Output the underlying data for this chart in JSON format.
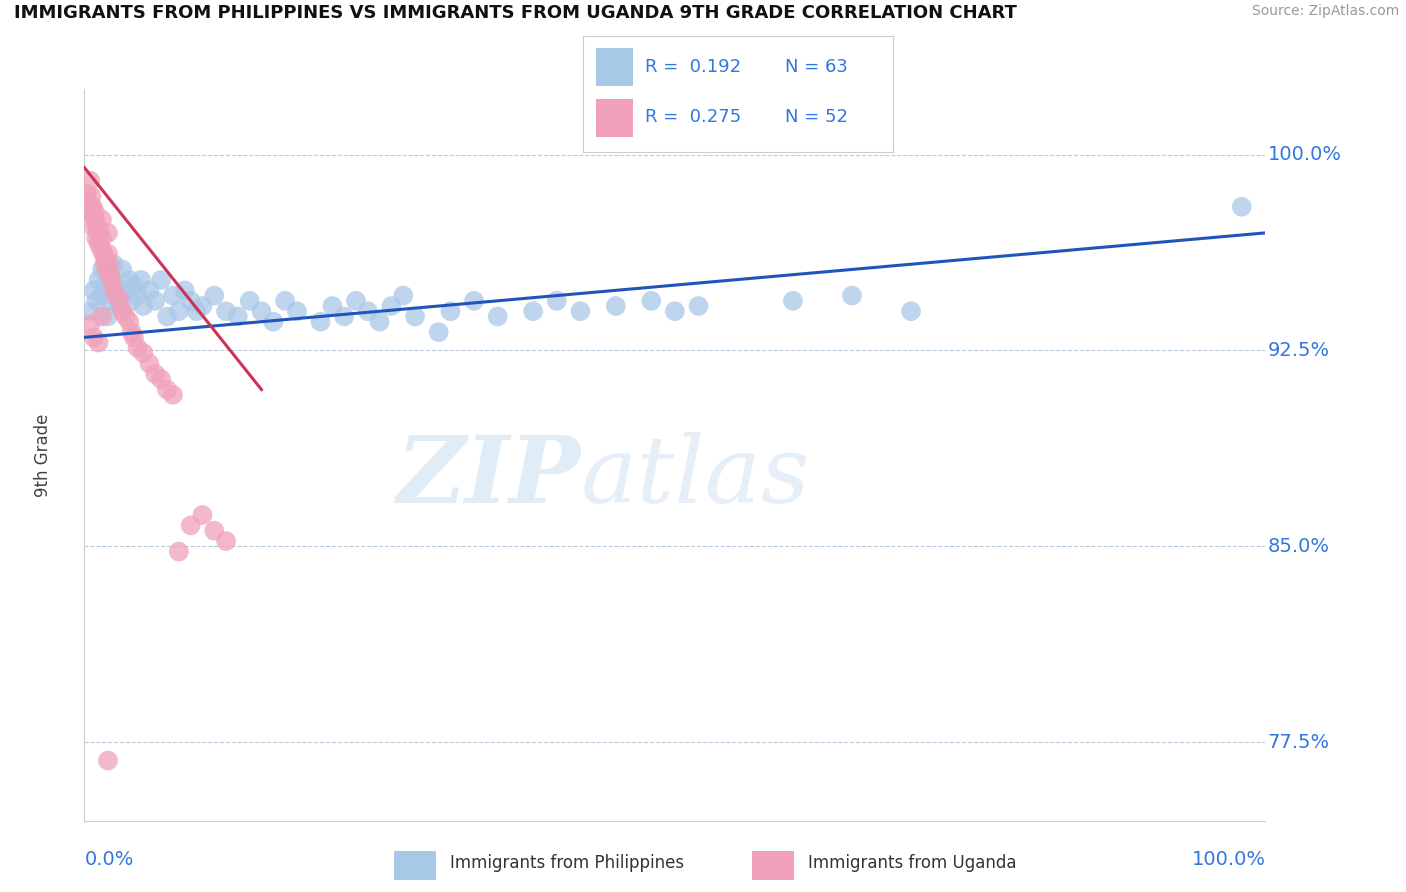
{
  "title": "IMMIGRANTS FROM PHILIPPINES VS IMMIGRANTS FROM UGANDA 9TH GRADE CORRELATION CHART",
  "source": "Source: ZipAtlas.com",
  "ylabel": "9th Grade",
  "y_tick_labels": [
    "77.5%",
    "85.0%",
    "92.5%",
    "100.0%"
  ],
  "y_tick_values": [
    0.775,
    0.85,
    0.925,
    1.0
  ],
  "x_range": [
    0.0,
    1.0
  ],
  "y_range": [
    0.745,
    1.025
  ],
  "blue_R": 0.192,
  "blue_N": 63,
  "pink_R": 0.275,
  "pink_N": 52,
  "blue_color": "#a8c8e8",
  "pink_color": "#f0a0b8",
  "trend_blue_color": "#2255bb",
  "trend_pink_color": "#cc3355",
  "legend_label_blue": "Immigrants from Philippines",
  "legend_label_pink": "Immigrants from Uganda",
  "watermark_zip": "ZIP",
  "watermark_atlas": "atlas",
  "title_color": "#111111",
  "axis_label_color": "#3377dd",
  "grid_color": "#b8cce0",
  "blue_scatter_x": [
    0.005,
    0.008,
    0.01,
    0.012,
    0.015,
    0.015,
    0.018,
    0.02,
    0.022,
    0.025,
    0.025,
    0.028,
    0.03,
    0.032,
    0.035,
    0.038,
    0.04,
    0.042,
    0.045,
    0.048,
    0.05,
    0.055,
    0.06,
    0.065,
    0.07,
    0.075,
    0.08,
    0.085,
    0.09,
    0.095,
    0.1,
    0.11,
    0.12,
    0.13,
    0.14,
    0.15,
    0.16,
    0.17,
    0.18,
    0.2,
    0.21,
    0.22,
    0.23,
    0.24,
    0.25,
    0.26,
    0.27,
    0.28,
    0.3,
    0.31,
    0.33,
    0.35,
    0.38,
    0.4,
    0.42,
    0.45,
    0.48,
    0.5,
    0.52,
    0.6,
    0.65,
    0.7,
    0.98
  ],
  "blue_scatter_y": [
    0.94,
    0.948,
    0.944,
    0.952,
    0.946,
    0.956,
    0.95,
    0.938,
    0.944,
    0.95,
    0.958,
    0.946,
    0.942,
    0.956,
    0.948,
    0.952,
    0.944,
    0.95,
    0.946,
    0.952,
    0.942,
    0.948,
    0.944,
    0.952,
    0.938,
    0.946,
    0.94,
    0.948,
    0.944,
    0.94,
    0.942,
    0.946,
    0.94,
    0.938,
    0.944,
    0.94,
    0.936,
    0.944,
    0.94,
    0.936,
    0.942,
    0.938,
    0.944,
    0.94,
    0.936,
    0.942,
    0.946,
    0.938,
    0.932,
    0.94,
    0.944,
    0.938,
    0.94,
    0.944,
    0.94,
    0.942,
    0.944,
    0.94,
    0.942,
    0.944,
    0.946,
    0.94,
    0.98
  ],
  "pink_scatter_x": [
    0.002,
    0.003,
    0.004,
    0.005,
    0.006,
    0.006,
    0.007,
    0.008,
    0.008,
    0.009,
    0.01,
    0.01,
    0.011,
    0.012,
    0.013,
    0.014,
    0.015,
    0.015,
    0.016,
    0.017,
    0.018,
    0.019,
    0.02,
    0.02,
    0.021,
    0.022,
    0.023,
    0.025,
    0.027,
    0.03,
    0.032,
    0.035,
    0.038,
    0.04,
    0.042,
    0.045,
    0.05,
    0.055,
    0.06,
    0.065,
    0.07,
    0.075,
    0.08,
    0.09,
    0.1,
    0.11,
    0.12,
    0.005,
    0.008,
    0.012,
    0.015,
    0.02
  ],
  "pink_scatter_y": [
    0.985,
    0.982,
    0.978,
    0.99,
    0.984,
    0.978,
    0.98,
    0.976,
    0.972,
    0.978,
    0.974,
    0.968,
    0.972,
    0.966,
    0.97,
    0.964,
    0.968,
    0.975,
    0.962,
    0.958,
    0.96,
    0.956,
    0.962,
    0.97,
    0.958,
    0.954,
    0.952,
    0.948,
    0.946,
    0.944,
    0.94,
    0.938,
    0.936,
    0.932,
    0.93,
    0.926,
    0.924,
    0.92,
    0.916,
    0.914,
    0.91,
    0.908,
    0.848,
    0.858,
    0.862,
    0.856,
    0.852,
    0.935,
    0.93,
    0.928,
    0.938,
    0.768
  ],
  "blue_trend_x": [
    0.0,
    1.0
  ],
  "blue_trend_y": [
    0.93,
    0.97
  ],
  "pink_trend_x": [
    0.0,
    0.15
  ],
  "pink_trend_y": [
    0.995,
    0.91
  ]
}
